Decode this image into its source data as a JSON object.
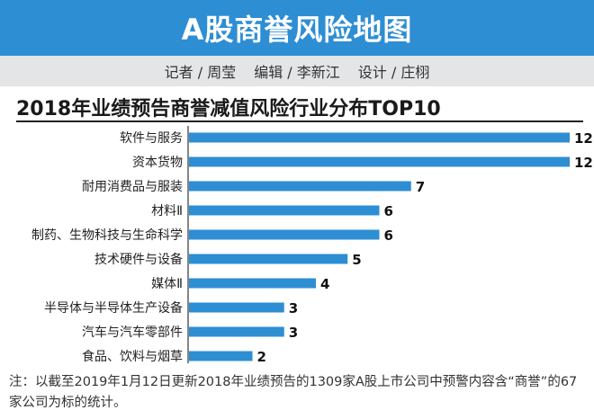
{
  "header": {
    "title": "A股商誉风险地图"
  },
  "credits": {
    "reporter": "记者 / 周莹",
    "editor": "编辑 / 李新江",
    "design": "设计 / 庄栩"
  },
  "note": "注：以截至2019年1月12日更新2018年业绩预告的1309家A股上市公司中预警内容含“商誉”的67家公司为标的统计。",
  "colors": {
    "banner": "#2e8ed3",
    "bar": "#2e8ed3"
  },
  "chart_data": {
    "type": "bar",
    "orientation": "horizontal",
    "title": "2018年业绩预告商誉减值风险行业分布TOP10",
    "categories": [
      "软件与服务",
      "资本货物",
      "耐用消费品与服装",
      "材料Ⅱ",
      "制药、生物科技与生命科学",
      "技术硬件与设备",
      "媒体Ⅱ",
      "半导体与半导体生产设备",
      "汽车与汽车零部件",
      "食品、饮料与烟草"
    ],
    "values": [
      12,
      12,
      7,
      6,
      6,
      5,
      4,
      3,
      3,
      2
    ],
    "data_labels": [
      "12",
      "12",
      "7",
      "6",
      "6",
      "5",
      "4",
      "3",
      "3",
      "2"
    ],
    "xlim": [
      0,
      12
    ],
    "grid": false,
    "legend": "none"
  }
}
